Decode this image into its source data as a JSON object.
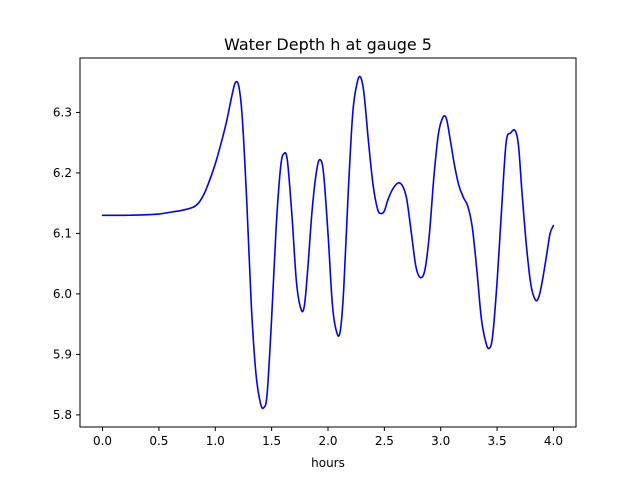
{
  "chart_data": {
    "type": "line",
    "title": "Water Depth h at gauge 5",
    "xlabel": "hours",
    "ylabel": "",
    "xlim": [
      -0.2,
      4.2
    ],
    "ylim": [
      5.78,
      6.39
    ],
    "xticks": [
      0.0,
      0.5,
      1.0,
      1.5,
      2.0,
      2.5,
      3.0,
      3.5,
      4.0
    ],
    "xtick_labels": [
      "0.0",
      "0.5",
      "1.0",
      "1.5",
      "2.0",
      "2.5",
      "3.0",
      "3.5",
      "4.0"
    ],
    "yticks": [
      5.8,
      5.9,
      6.0,
      6.1,
      6.2,
      6.3
    ],
    "ytick_labels": [
      "5.8",
      "5.9",
      "6.0",
      "6.1",
      "6.2",
      "6.3"
    ],
    "grid": false,
    "legend": "none",
    "color": "#0000ff",
    "series": [
      {
        "x": [
          0.0,
          0.2,
          0.4,
          0.5,
          0.6,
          0.7,
          0.8,
          0.85,
          0.9,
          0.95,
          1.0,
          1.05,
          1.1,
          1.15,
          1.18,
          1.21,
          1.24,
          1.28,
          1.32,
          1.36,
          1.4,
          1.43,
          1.46,
          1.5,
          1.54,
          1.58,
          1.61,
          1.64,
          1.68,
          1.72,
          1.76,
          1.79,
          1.82,
          1.86,
          1.9,
          1.93,
          1.96,
          2.0,
          2.04,
          2.08,
          2.11,
          2.14,
          2.18,
          2.22,
          2.26,
          2.29,
          2.32,
          2.36,
          2.4,
          2.44,
          2.47,
          2.5,
          2.53,
          2.57,
          2.61,
          2.64,
          2.67,
          2.7,
          2.74,
          2.78,
          2.82,
          2.86,
          2.9,
          2.94,
          2.98,
          3.02,
          3.05,
          3.08,
          3.12,
          3.16,
          3.2,
          3.24,
          3.28,
          3.32,
          3.36,
          3.4,
          3.43,
          3.46,
          3.5,
          3.54,
          3.58,
          3.62,
          3.66,
          3.69,
          3.72,
          3.76,
          3.8,
          3.84,
          3.87,
          3.9,
          3.94,
          3.97,
          4.0
        ],
        "y": [
          6.13,
          6.13,
          6.131,
          6.132,
          6.135,
          6.138,
          6.143,
          6.15,
          6.165,
          6.188,
          6.215,
          6.248,
          6.285,
          6.33,
          6.35,
          6.342,
          6.29,
          6.15,
          5.98,
          5.87,
          5.82,
          5.812,
          5.835,
          5.96,
          6.11,
          6.21,
          6.232,
          6.22,
          6.13,
          6.02,
          5.975,
          5.98,
          6.04,
          6.14,
          6.205,
          6.222,
          6.2,
          6.1,
          5.98,
          5.935,
          5.94,
          6.01,
          6.17,
          6.3,
          6.35,
          6.358,
          6.33,
          6.25,
          6.18,
          6.14,
          6.133,
          6.137,
          6.155,
          6.172,
          6.182,
          6.183,
          6.175,
          6.155,
          6.1,
          6.045,
          6.027,
          6.04,
          6.1,
          6.195,
          6.265,
          6.292,
          6.29,
          6.26,
          6.215,
          6.18,
          6.16,
          6.145,
          6.11,
          6.04,
          5.96,
          5.92,
          5.91,
          5.93,
          6.02,
          6.14,
          6.25,
          6.266,
          6.27,
          6.245,
          6.17,
          6.08,
          6.015,
          5.99,
          5.995,
          6.02,
          6.065,
          6.1,
          6.113
        ]
      }
    ]
  }
}
